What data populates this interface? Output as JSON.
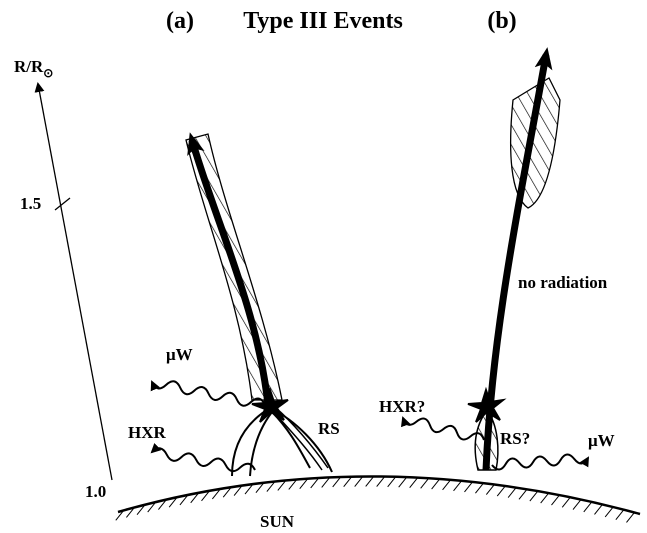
{
  "header": {
    "panel_a": "(a)",
    "title": "Type III Events",
    "panel_b": "(b)"
  },
  "axis": {
    "label": "R/R",
    "label_sub": "⊙",
    "ticks": [
      "1.5",
      "1.0"
    ]
  },
  "panel_a": {
    "labels": [
      "μW",
      "HXR",
      "RS"
    ]
  },
  "panel_b": {
    "labels": [
      "HXR?",
      "RS?",
      "μW",
      "no radiation"
    ]
  },
  "surface_label": "SUN"
}
